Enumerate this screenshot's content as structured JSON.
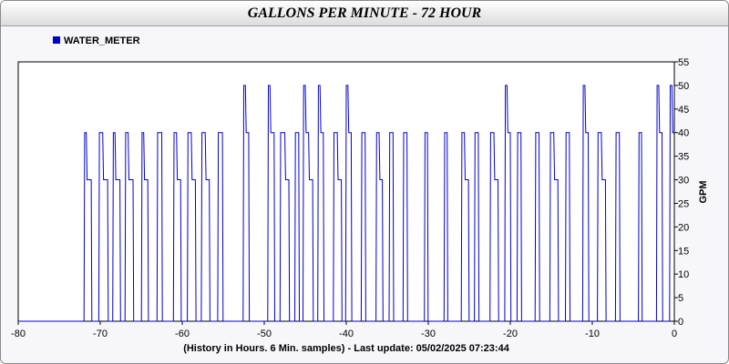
{
  "chart_data": {
    "type": "line",
    "title": "GALLONS PER MINUTE - 72 HOUR",
    "xlabel": "(History in Hours. 6 Min. samples) - Last update: 05/02/2025 07:23:44",
    "ylabel": "GPM",
    "xlim": [
      -80,
      0
    ],
    "ylim": [
      0,
      55
    ],
    "x_ticks": [
      -80,
      -70,
      -60,
      -50,
      -40,
      -30,
      -20,
      -10,
      0
    ],
    "y_ticks": [
      0,
      5,
      10,
      15,
      20,
      25,
      30,
      35,
      40,
      45,
      50,
      55
    ],
    "grid": false,
    "legend_position": "top-left",
    "series": [
      {
        "name": "WATER_METER",
        "color": "#0000cc",
        "events": [
          [
            -71.9,
            -71.7,
            40
          ],
          [
            -71.6,
            -71.1,
            30
          ],
          [
            -70.1,
            -69.7,
            40
          ],
          [
            -69.6,
            -69.1,
            30
          ],
          [
            -68.4,
            -68.2,
            40
          ],
          [
            -68.1,
            -67.6,
            30
          ],
          [
            -66.9,
            -66.6,
            40
          ],
          [
            -66.5,
            -66.0,
            30
          ],
          [
            -64.9,
            -64.7,
            40
          ],
          [
            -64.6,
            -64.2,
            30
          ],
          [
            -63.0,
            -62.5,
            40
          ],
          [
            -61.0,
            -60.7,
            40
          ],
          [
            -60.6,
            -60.2,
            30
          ],
          [
            -59.3,
            -58.9,
            40
          ],
          [
            -58.8,
            -58.4,
            30
          ],
          [
            -57.6,
            -57.2,
            40
          ],
          [
            -57.1,
            -56.7,
            30
          ],
          [
            -55.6,
            -55.1,
            40
          ],
          [
            -52.5,
            -52.3,
            50
          ],
          [
            -52.2,
            -51.9,
            40
          ],
          [
            -49.5,
            -49.3,
            50
          ],
          [
            -49.2,
            -48.8,
            40
          ],
          [
            -48.0,
            -47.5,
            40
          ],
          [
            -47.4,
            -47.0,
            30
          ],
          [
            -46.2,
            -45.8,
            40
          ],
          [
            -45.2,
            -45.0,
            50
          ],
          [
            -44.9,
            -44.6,
            40
          ],
          [
            -44.5,
            -44.1,
            30
          ],
          [
            -43.4,
            -43.2,
            50
          ],
          [
            -43.1,
            -42.8,
            40
          ],
          [
            -41.5,
            -41.1,
            40
          ],
          [
            -41.0,
            -40.6,
            30
          ],
          [
            -40.0,
            -39.8,
            50
          ],
          [
            -39.7,
            -39.4,
            40
          ],
          [
            -38.1,
            -37.7,
            40
          ],
          [
            -36.3,
            -36.0,
            40
          ],
          [
            -35.9,
            -35.6,
            30
          ],
          [
            -34.7,
            -34.3,
            40
          ],
          [
            -33.0,
            -32.6,
            40
          ],
          [
            -30.4,
            -30.1,
            40
          ],
          [
            -28.0,
            -27.7,
            40
          ],
          [
            -25.9,
            -25.6,
            40
          ],
          [
            -25.5,
            -25.1,
            30
          ],
          [
            -24.3,
            -23.9,
            40
          ],
          [
            -22.4,
            -22.0,
            40
          ],
          [
            -21.9,
            -21.5,
            30
          ],
          [
            -20.6,
            -20.4,
            50
          ],
          [
            -20.3,
            -20.0,
            40
          ],
          [
            -19.1,
            -18.7,
            40
          ],
          [
            -16.9,
            -16.5,
            40
          ],
          [
            -15.1,
            -14.7,
            40
          ],
          [
            -14.6,
            -14.2,
            30
          ],
          [
            -13.2,
            -12.8,
            40
          ],
          [
            -11.1,
            -10.9,
            50
          ],
          [
            -10.8,
            -10.5,
            40
          ],
          [
            -9.3,
            -8.9,
            40
          ],
          [
            -8.8,
            -8.4,
            30
          ],
          [
            -7.1,
            -6.7,
            40
          ],
          [
            -4.3,
            -4.0,
            40
          ],
          [
            -2.1,
            -1.9,
            50
          ],
          [
            -1.8,
            -1.5,
            40
          ],
          [
            -0.5,
            -0.3,
            50
          ],
          [
            -0.2,
            0.0,
            40
          ]
        ]
      }
    ]
  }
}
